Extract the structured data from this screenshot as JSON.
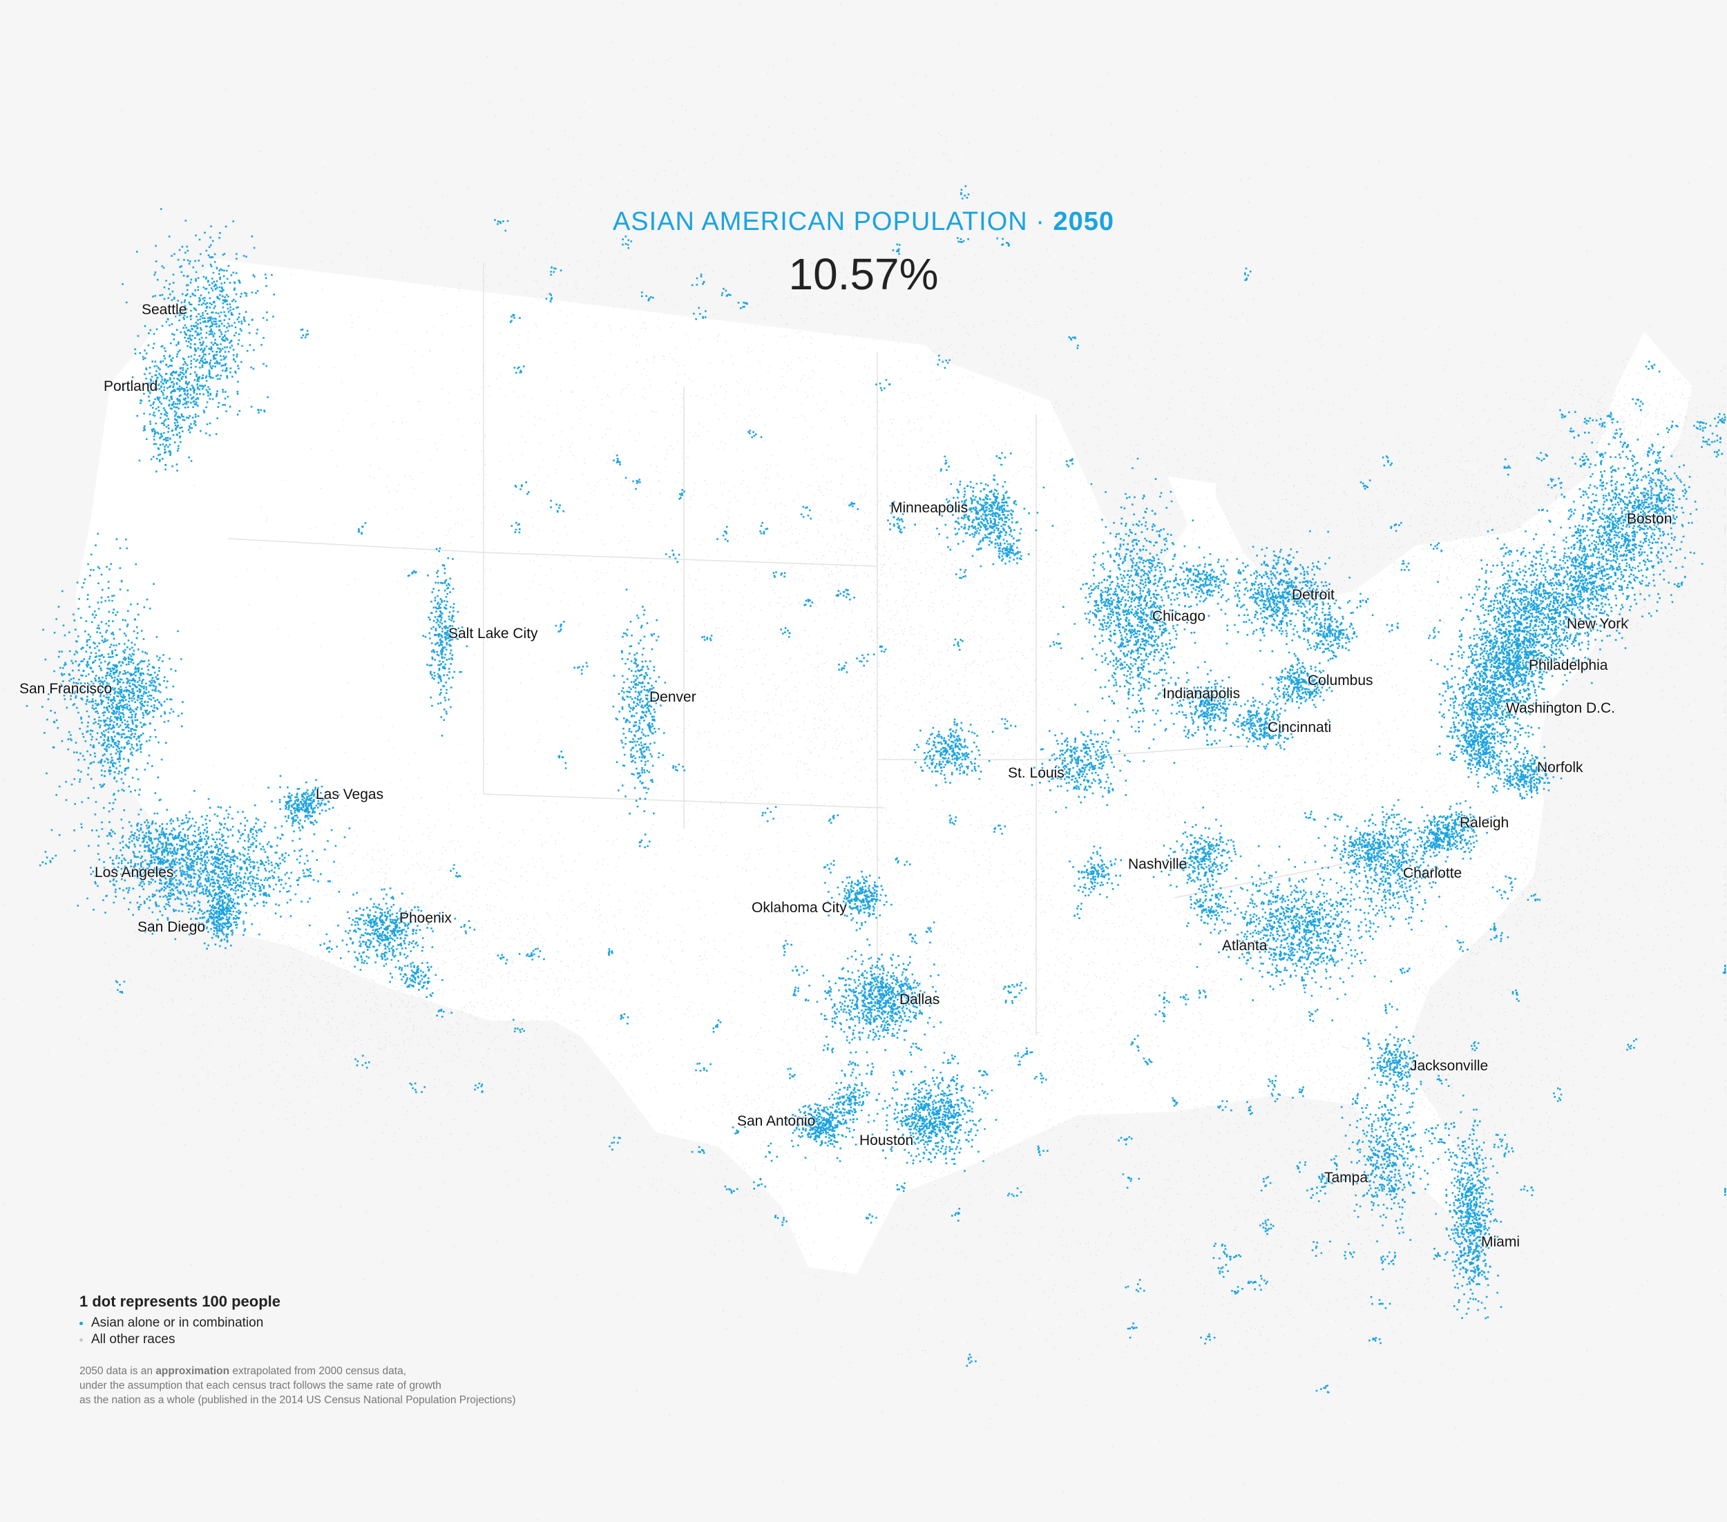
{
  "title": {
    "main": "ASIAN AMERICAN POPULATION · ",
    "year": "2050"
  },
  "percentage": "10.57%",
  "colors": {
    "asian": "#1ba3e0",
    "other": "#c9c9c9",
    "land": "#ffffff",
    "background": "#f6f6f6"
  },
  "cities": [
    {
      "name": "Seattle"
    },
    {
      "name": "Portland"
    },
    {
      "name": "San Francisco"
    },
    {
      "name": "Los Angeles"
    },
    {
      "name": "San Diego"
    },
    {
      "name": "Las Vegas"
    },
    {
      "name": "Phoenix"
    },
    {
      "name": "Salt Lake City"
    },
    {
      "name": "Denver"
    },
    {
      "name": "Minneapolis"
    },
    {
      "name": "Chicago"
    },
    {
      "name": "Detroit"
    },
    {
      "name": "Boston"
    },
    {
      "name": "New York"
    },
    {
      "name": "Philadelphia"
    },
    {
      "name": "Washington D.C."
    },
    {
      "name": "Norfolk"
    },
    {
      "name": "Columbus"
    },
    {
      "name": "Indianapolis"
    },
    {
      "name": "Cincinnati"
    },
    {
      "name": "St. Louis"
    },
    {
      "name": "Raleigh"
    },
    {
      "name": "Charlotte"
    },
    {
      "name": "Nashville"
    },
    {
      "name": "Atlanta"
    },
    {
      "name": "Oklahoma City"
    },
    {
      "name": "Dallas"
    },
    {
      "name": "Jacksonville"
    },
    {
      "name": "San Antonio"
    },
    {
      "name": "Houston"
    },
    {
      "name": "Tampa"
    },
    {
      "name": "Miami"
    }
  ],
  "legend": {
    "heading": "1 dot represents 100 people",
    "asian_label": "Asian alone or in combination",
    "other_label": "All other races"
  },
  "note": {
    "line1_pre": "2050 data is an ",
    "line1_bold": "approximation",
    "line1_post": " extrapolated from 2000 census data,",
    "line2": "under the assumption that each census tract follows the same rate of growth",
    "line3": "as the nation as a whole (published in the 2014 US Census National Population Projections)"
  }
}
